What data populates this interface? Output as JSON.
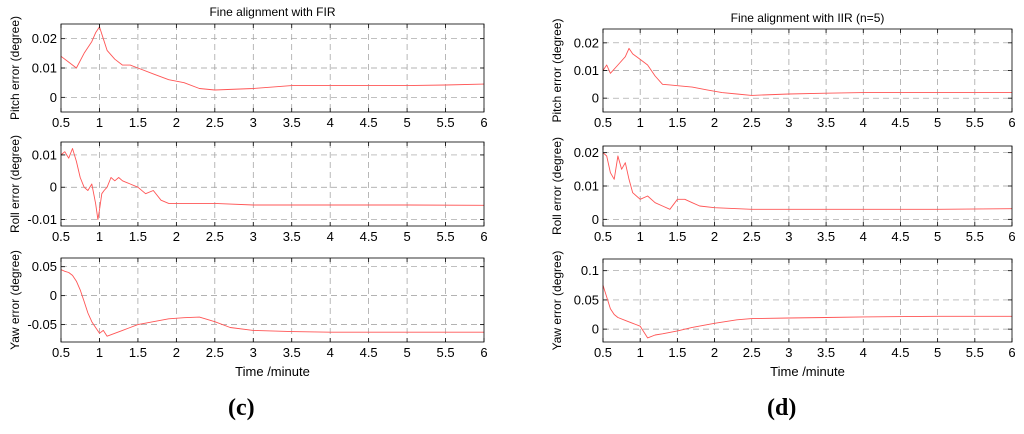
{
  "captions": {
    "c": "(c)",
    "d": "(d)"
  },
  "colors": {
    "series": "#ff5555",
    "grid": "#9a9a9a",
    "axis": "#000000"
  },
  "chart_data": [
    {
      "id": "c",
      "title": "Fine alignment with FIR",
      "xlabel": "Time /minute",
      "subplots": [
        {
          "type": "line",
          "ylabel": "Pitch error (degree)",
          "xlim": [
            0.5,
            6
          ],
          "ylim": [
            -0.005,
            0.025
          ],
          "xticks": [
            0.5,
            1,
            1.5,
            2,
            2.5,
            3,
            3.5,
            4,
            4.5,
            5,
            5.5,
            6
          ],
          "xticklabels": [
            "0.5",
            "1",
            "1.5",
            "2",
            "2.5",
            "3",
            "3.5",
            "4",
            "4.5",
            "5",
            "5.5",
            "6"
          ],
          "yticks": [
            0,
            0.01,
            0.02
          ],
          "yticklabels": [
            "0",
            "0.01",
            "0.02"
          ],
          "grid": true,
          "x": [
            0.5,
            0.6,
            0.7,
            0.8,
            0.9,
            0.95,
            1.0,
            1.05,
            1.1,
            1.2,
            1.3,
            1.4,
            1.5,
            1.7,
            1.9,
            2.1,
            2.3,
            2.5,
            3.0,
            3.5,
            4.0,
            5.0,
            5.5,
            6.0
          ],
          "y": [
            0.014,
            0.012,
            0.01,
            0.015,
            0.019,
            0.022,
            0.024,
            0.02,
            0.016,
            0.013,
            0.011,
            0.011,
            0.01,
            0.008,
            0.006,
            0.005,
            0.003,
            0.0025,
            0.003,
            0.004,
            0.004,
            0.004,
            0.0042,
            0.0045
          ]
        },
        {
          "type": "line",
          "ylabel": "Roll error (degree)",
          "xlim": [
            0.5,
            6
          ],
          "ylim": [
            -0.012,
            0.014
          ],
          "xticks": [
            0.5,
            1,
            1.5,
            2,
            2.5,
            3,
            3.5,
            4,
            4.5,
            5,
            5.5,
            6
          ],
          "xticklabels": [
            "0.5",
            "1",
            "1.5",
            "2",
            "2.5",
            "3",
            "3.5",
            "4",
            "4.5",
            "5",
            "5.5",
            "6"
          ],
          "yticks": [
            -0.01,
            0,
            0.01
          ],
          "yticklabels": [
            "-0.01",
            "0",
            "0.01"
          ],
          "grid": true,
          "x": [
            0.5,
            0.55,
            0.6,
            0.65,
            0.7,
            0.75,
            0.8,
            0.85,
            0.9,
            0.95,
            0.98,
            1.0,
            1.03,
            1.06,
            1.1,
            1.15,
            1.2,
            1.25,
            1.3,
            1.4,
            1.5,
            1.6,
            1.7,
            1.8,
            1.9,
            2.0,
            2.5,
            3.0,
            4.0,
            5.0,
            6.0
          ],
          "y": [
            0.01,
            0.011,
            0.009,
            0.012,
            0.008,
            0.003,
            0.0,
            -0.001,
            0.001,
            -0.005,
            -0.01,
            -0.007,
            -0.002,
            -0.001,
            0.0,
            0.003,
            0.002,
            0.003,
            0.002,
            0.001,
            0.0,
            -0.002,
            -0.001,
            -0.004,
            -0.005,
            -0.005,
            -0.005,
            -0.0055,
            -0.0055,
            -0.0055,
            -0.0056
          ]
        },
        {
          "type": "line",
          "ylabel": "Yaw error (degree)",
          "xlim": [
            0.5,
            6
          ],
          "ylim": [
            -0.08,
            0.065
          ],
          "xticks": [
            0.5,
            1,
            1.5,
            2,
            2.5,
            3,
            3.5,
            4,
            4.5,
            5,
            5.5,
            6
          ],
          "xticklabels": [
            "0.5",
            "1",
            "1.5",
            "2",
            "2.5",
            "3",
            "3.5",
            "4",
            "4.5",
            "5",
            "5.5",
            "6"
          ],
          "yticks": [
            -0.05,
            0,
            0.05
          ],
          "yticklabels": [
            "-0.05",
            "0",
            "0.05"
          ],
          "grid": true,
          "x": [
            0.5,
            0.55,
            0.6,
            0.65,
            0.7,
            0.75,
            0.8,
            0.85,
            0.9,
            0.95,
            1.0,
            1.05,
            1.1,
            1.2,
            1.3,
            1.4,
            1.5,
            1.7,
            1.9,
            2.1,
            2.3,
            2.5,
            2.7,
            3.0,
            3.5,
            4.0,
            5.0,
            6.0
          ],
          "y": [
            0.045,
            0.042,
            0.04,
            0.035,
            0.025,
            0.01,
            -0.01,
            -0.03,
            -0.045,
            -0.055,
            -0.065,
            -0.06,
            -0.07,
            -0.065,
            -0.06,
            -0.055,
            -0.05,
            -0.045,
            -0.04,
            -0.038,
            -0.037,
            -0.045,
            -0.055,
            -0.06,
            -0.062,
            -0.063,
            -0.063,
            -0.063
          ]
        }
      ]
    },
    {
      "id": "d",
      "title": "Fine alignment with IIR (n=5)",
      "xlabel": "Time /minute",
      "subplots": [
        {
          "type": "line",
          "ylabel": "Pitch error (degree)",
          "xlim": [
            0.5,
            6
          ],
          "ylim": [
            -0.005,
            0.025
          ],
          "xticks": [
            0.5,
            1,
            1.5,
            2,
            2.5,
            3,
            3.5,
            4,
            4.5,
            5,
            5.5,
            6
          ],
          "xticklabels": [
            "0.5",
            "1",
            "1.5",
            "2",
            "2.5",
            "3",
            "3.5",
            "4",
            "4.5",
            "5",
            "5.5",
            "6"
          ],
          "yticks": [
            0,
            0.01,
            0.02
          ],
          "yticklabels": [
            "0",
            "0.01",
            "0.02"
          ],
          "grid": true,
          "x": [
            0.5,
            0.55,
            0.6,
            0.7,
            0.8,
            0.85,
            0.9,
            1.0,
            1.1,
            1.2,
            1.3,
            1.4,
            1.5,
            1.7,
            1.9,
            2.1,
            2.3,
            2.5,
            3.0,
            3.5,
            4.0,
            5.0,
            6.0
          ],
          "y": [
            0.01,
            0.012,
            0.009,
            0.012,
            0.015,
            0.018,
            0.016,
            0.014,
            0.012,
            0.008,
            0.005,
            0.0048,
            0.0045,
            0.004,
            0.003,
            0.002,
            0.0015,
            0.001,
            0.0015,
            0.0018,
            0.002,
            0.002,
            0.002
          ]
        },
        {
          "type": "line",
          "ylabel": "Roll error (degree)",
          "xlim": [
            0.5,
            6
          ],
          "ylim": [
            -0.002,
            0.022
          ],
          "xticks": [
            0.5,
            1,
            1.5,
            2,
            2.5,
            3,
            3.5,
            4,
            4.5,
            5,
            5.5,
            6
          ],
          "xticklabels": [
            "0.5",
            "1",
            "1.5",
            "2",
            "2.5",
            "3",
            "3.5",
            "4",
            "4.5",
            "5",
            "5.5",
            "6"
          ],
          "yticks": [
            0,
            0.01,
            0.02
          ],
          "yticklabels": [
            "0",
            "0.01",
            "0.02"
          ],
          "grid": true,
          "x": [
            0.5,
            0.55,
            0.6,
            0.65,
            0.7,
            0.75,
            0.8,
            0.85,
            0.9,
            1.0,
            1.1,
            1.2,
            1.3,
            1.4,
            1.5,
            1.6,
            1.7,
            1.8,
            2.0,
            2.5,
            3.0,
            4.0,
            5.0,
            6.0
          ],
          "y": [
            0.02,
            0.019,
            0.014,
            0.012,
            0.019,
            0.015,
            0.017,
            0.012,
            0.008,
            0.006,
            0.007,
            0.005,
            0.004,
            0.003,
            0.006,
            0.006,
            0.005,
            0.004,
            0.0035,
            0.003,
            0.003,
            0.003,
            0.003,
            0.0032
          ]
        },
        {
          "type": "line",
          "ylabel": "Yaw error (degree)",
          "xlim": [
            0.5,
            6
          ],
          "ylim": [
            -0.022,
            0.12
          ],
          "xticks": [
            0.5,
            1,
            1.5,
            2,
            2.5,
            3,
            3.5,
            4,
            4.5,
            5,
            5.5,
            6
          ],
          "xticklabels": [
            "0.5",
            "1",
            "1.5",
            "2",
            "2.5",
            "3",
            "3.5",
            "4",
            "4.5",
            "5",
            "5.5",
            "6"
          ],
          "yticks": [
            0,
            0.05,
            0.1
          ],
          "yticklabels": [
            "0",
            "0.05",
            "0.1"
          ],
          "grid": true,
          "x": [
            0.5,
            0.55,
            0.6,
            0.65,
            0.7,
            0.8,
            0.9,
            1.0,
            1.1,
            1.2,
            1.3,
            1.5,
            1.7,
            2.0,
            2.3,
            2.5,
            3.0,
            3.5,
            4.0,
            5.0,
            6.0
          ],
          "y": [
            0.075,
            0.055,
            0.035,
            0.025,
            0.02,
            0.015,
            0.01,
            0.005,
            -0.015,
            -0.01,
            -0.008,
            -0.003,
            0.003,
            0.01,
            0.016,
            0.018,
            0.019,
            0.02,
            0.021,
            0.022,
            0.022
          ]
        }
      ]
    }
  ]
}
